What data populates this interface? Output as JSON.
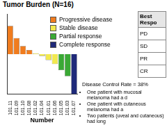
{
  "chart_data": {
    "type": "bar",
    "title": "Tumor Burden (N=16)",
    "x_label": "Number",
    "categories": [
      "101.11",
      "101.09",
      "101.10",
      "101.08",
      "101.02",
      "101.04",
      "101.01",
      "101.06",
      "101.05",
      "101.03",
      "101.07"
    ],
    "series": [
      {
        "name": "Progressive disease",
        "color": "#f07c1e",
        "values": [
          70,
          40,
          20,
          10,
          null,
          null,
          null,
          null,
          null,
          null,
          null
        ]
      },
      {
        "name": "Stable disease",
        "color": "#f2e94e",
        "values": [
          null,
          null,
          null,
          null,
          2,
          -5,
          -15,
          -25,
          null,
          null,
          null
        ]
      },
      {
        "name": "Partial response",
        "color": "#3aa935",
        "values": [
          null,
          null,
          null,
          null,
          null,
          null,
          null,
          null,
          -40,
          -55,
          null
        ]
      },
      {
        "name": "Complete response",
        "color": "#1f2a7a",
        "values": [
          null,
          null,
          null,
          null,
          null,
          null,
          null,
          null,
          null,
          null,
          -100
        ]
      }
    ],
    "stacked": true,
    "ylim": [
      -100,
      100
    ],
    "grid": false,
    "tick_labels": "x",
    "annotations": [
      "Disease Control Rate = 38%"
    ],
    "bullets": [
      "One patient with mucosal melanoma had a d",
      "One patient with cutaneous melanoma had a",
      "Two patients (uveal and cutaneous) had long"
    ]
  },
  "table": {
    "header": "Best Respo",
    "rows": [
      "PD",
      "SD",
      "PR",
      "CR"
    ]
  }
}
